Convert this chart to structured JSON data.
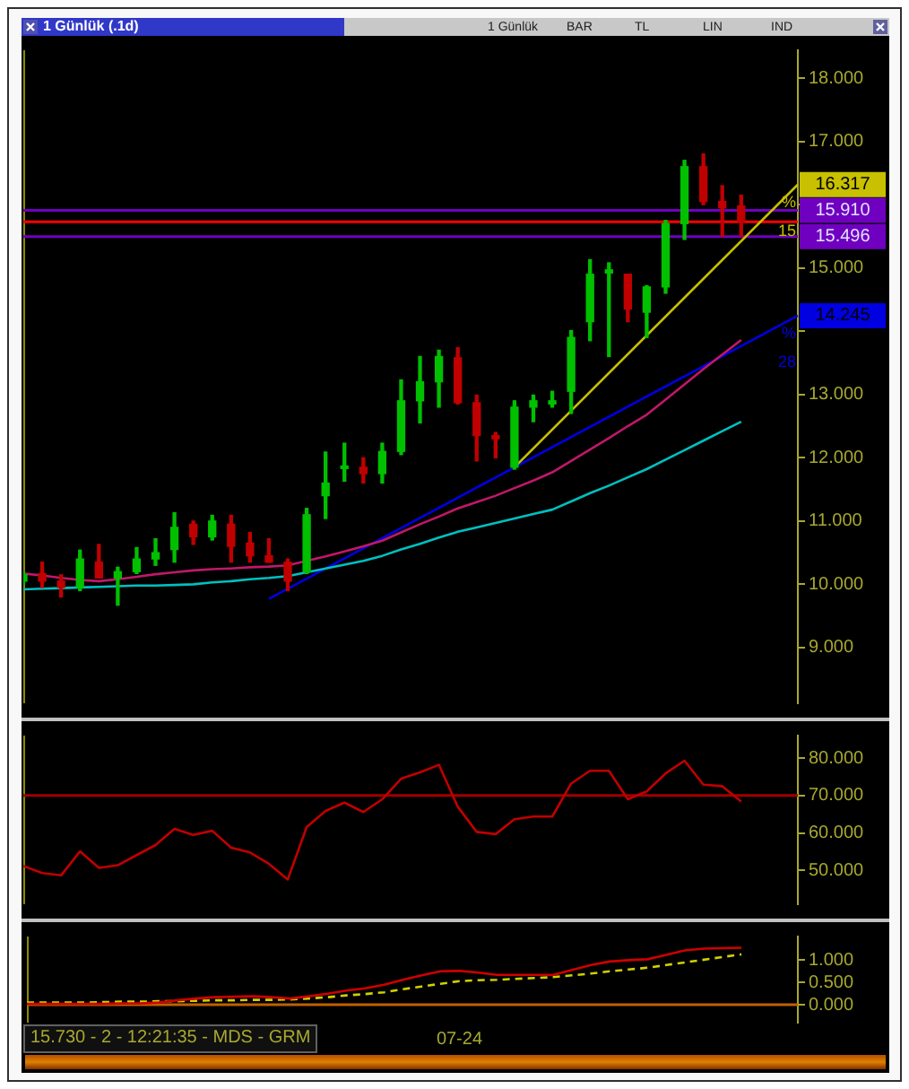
{
  "chart_data": [
    {
      "type": "candlestick",
      "title": "1 Günlük (.1d)",
      "annotations": [
        "1 Günlük",
        "BAR",
        "TL",
        "LIN",
        "IND",
        "%",
        "15",
        "%",
        "28"
      ],
      "categories": [
        null,
        null,
        null,
        null,
        null,
        null,
        null,
        null,
        null,
        null,
        null,
        null,
        null,
        null,
        null,
        null,
        null,
        null,
        null,
        null,
        null,
        null,
        null,
        null,
        null,
        null,
        null,
        null,
        null,
        null,
        null,
        null,
        null,
        null,
        null,
        null,
        null,
        null,
        null,
        null,
        null,
        null
      ],
      "ohlc": [
        [
          10.05,
          10.2,
          10.0,
          10.15
        ],
        [
          10.17,
          10.35,
          9.95,
          10.05
        ],
        [
          10.05,
          10.15,
          9.8,
          9.95
        ],
        [
          9.95,
          10.54,
          9.9,
          10.4
        ],
        [
          10.35,
          10.63,
          10.1,
          10.1
        ],
        [
          10.1,
          10.27,
          9.67,
          10.2
        ],
        [
          10.2,
          10.58,
          10.17,
          10.4
        ],
        [
          10.4,
          10.72,
          10.3,
          10.5
        ],
        [
          10.55,
          11.13,
          10.35,
          10.9
        ],
        [
          10.95,
          11.0,
          10.63,
          10.75
        ],
        [
          10.75,
          11.09,
          10.7,
          11.0
        ],
        [
          10.95,
          11.09,
          10.35,
          10.6
        ],
        [
          10.65,
          10.82,
          10.35,
          10.45
        ],
        [
          10.45,
          10.72,
          10.35,
          10.35
        ],
        [
          10.35,
          10.4,
          9.9,
          10.05
        ],
        [
          10.2,
          11.2,
          10.17,
          11.1
        ],
        [
          11.4,
          12.09,
          11.04,
          11.6
        ],
        [
          11.83,
          12.23,
          11.63,
          11.87
        ],
        [
          11.85,
          12.0,
          11.6,
          11.75
        ],
        [
          11.75,
          12.23,
          11.6,
          12.1
        ],
        [
          12.1,
          13.23,
          12.05,
          12.9
        ],
        [
          12.9,
          13.6,
          12.55,
          13.2
        ],
        [
          13.2,
          13.7,
          12.8,
          13.6
        ],
        [
          13.58,
          13.74,
          12.85,
          12.87
        ],
        [
          12.87,
          12.99,
          11.95,
          12.35
        ],
        [
          12.35,
          12.4,
          12.0,
          12.3
        ],
        [
          11.85,
          12.9,
          11.82,
          12.8
        ],
        [
          12.8,
          12.99,
          12.57,
          12.9
        ],
        [
          12.85,
          13.05,
          12.8,
          12.9
        ],
        [
          13.05,
          14.01,
          12.7,
          13.9
        ],
        [
          14.15,
          15.13,
          13.85,
          14.9
        ],
        [
          14.92,
          15.08,
          13.6,
          14.97
        ],
        [
          14.9,
          14.9,
          14.15,
          14.35
        ],
        [
          14.3,
          14.72,
          13.9,
          14.7
        ],
        [
          14.7,
          15.75,
          14.6,
          15.7
        ],
        [
          15.7,
          16.7,
          15.45,
          16.6
        ],
        [
          16.6,
          16.8,
          16.0,
          16.05
        ],
        [
          16.05,
          16.3,
          15.5,
          15.95
        ],
        [
          15.98,
          16.15,
          15.5,
          15.73
        ],
        null,
        null,
        null
      ],
      "colors": [
        "#00c000",
        "#c00000",
        "#c00000",
        "#00c000",
        "#c00000",
        "#00c000",
        "#00c000",
        "#00c000",
        "#00c000",
        "#c00000",
        "#00c000",
        "#c00000",
        "#c00000",
        "#c00000",
        "#c00000",
        "#00c000",
        "#00c000",
        "#00c000",
        "#c00000",
        "#00c000",
        "#00c000",
        "#00c000",
        "#00c000",
        "#c00000",
        "#c00000",
        "#c00000",
        "#00c000",
        "#00c000",
        "#00c000",
        "#00c000",
        "#00c000",
        "#00c000",
        "#c00000",
        "#00c000",
        "#00c000",
        "#00c000",
        "#c00000",
        "#c00000",
        "#c00000",
        null,
        null,
        null
      ],
      "series": [
        {
          "type": "line",
          "color": "#00c0c0",
          "values": [
            9.92,
            9.93,
            9.94,
            9.95,
            9.96,
            9.97,
            9.98,
            9.98,
            9.99,
            10.0,
            10.03,
            10.05,
            10.08,
            10.1,
            10.13,
            10.19,
            10.25,
            10.31,
            10.37,
            10.45,
            10.55,
            10.64,
            10.74,
            10.83,
            10.9,
            10.97,
            11.04,
            11.11,
            11.18,
            11.31,
            11.44,
            11.56,
            11.69,
            11.82,
            11.97,
            12.12,
            12.27,
            12.42,
            12.57,
            null,
            null,
            null
          ]
        },
        {
          "type": "line",
          "color": "#c0186a",
          "values": [
            10.17,
            10.14,
            10.1,
            10.07,
            10.05,
            10.08,
            10.12,
            10.16,
            10.19,
            10.22,
            10.24,
            10.25,
            10.27,
            10.28,
            10.3,
            10.37,
            10.44,
            10.52,
            10.6,
            10.69,
            10.82,
            10.95,
            11.07,
            11.2,
            11.3,
            11.4,
            11.52,
            11.64,
            11.77,
            11.95,
            12.13,
            12.31,
            12.5,
            12.68,
            12.92,
            13.16,
            13.4,
            13.63,
            13.86,
            null,
            null,
            null
          ]
        },
        {
          "type": "line",
          "color": "#c8c000",
          "values": [
            null,
            null,
            null,
            null,
            null,
            null,
            null,
            null,
            null,
            null,
            null,
            null,
            null,
            null,
            null,
            null,
            null,
            null,
            null,
            null,
            null,
            null,
            null,
            null,
            null,
            null,
            11.85,
            null,
            null,
            null,
            null,
            null,
            null,
            null,
            null,
            null,
            null,
            null,
            null,
            null,
            null,
            16.317
          ],
          "value_labels": [
            null,
            null,
            null,
            null,
            null,
            null,
            null,
            null,
            null,
            null,
            null,
            null,
            null,
            null,
            null,
            null,
            null,
            null,
            null,
            null,
            null,
            null,
            null,
            null,
            null,
            null,
            null,
            null,
            null,
            null,
            null,
            null,
            null,
            null,
            null,
            null,
            null,
            null,
            null,
            null,
            null,
            "16.317"
          ]
        },
        {
          "type": "line",
          "color": "#0000e0",
          "values": [
            null,
            null,
            null,
            null,
            null,
            null,
            null,
            null,
            null,
            null,
            null,
            null,
            null,
            9.77,
            null,
            null,
            null,
            null,
            null,
            null,
            null,
            null,
            null,
            null,
            null,
            null,
            null,
            null,
            null,
            null,
            null,
            null,
            null,
            null,
            null,
            null,
            null,
            null,
            null,
            null,
            null,
            14.245
          ],
          "value_labels": [
            null,
            null,
            null,
            null,
            null,
            null,
            null,
            null,
            null,
            null,
            null,
            null,
            null,
            null,
            null,
            null,
            null,
            null,
            null,
            null,
            null,
            null,
            null,
            null,
            null,
            null,
            null,
            null,
            null,
            null,
            null,
            null,
            null,
            null,
            null,
            null,
            null,
            null,
            null,
            null,
            null,
            "14.245"
          ]
        }
      ],
      "ref_lines": [
        {
          "axis": "y",
          "value": 15.91,
          "label": "15.910",
          "color": "#7000c0"
        },
        {
          "axis": "y",
          "value": 15.496,
          "label": "15.496",
          "color": "#7000c0"
        },
        {
          "axis": "y",
          "value": 15.73,
          "color": "#ff0000"
        }
      ],
      "ylim": [
        8.12,
        18.44
      ],
      "yticks": [
        {
          "value": 9,
          "label": "9.000"
        },
        {
          "value": 10,
          "label": "10.000"
        },
        {
          "value": 11,
          "label": "11.000"
        },
        {
          "value": 12,
          "label": "12.000"
        },
        {
          "value": 13,
          "label": "13.000"
        },
        {
          "value": 14,
          "label": null
        },
        {
          "value": 15,
          "label": "15.000"
        },
        {
          "value": 16,
          "label": null
        },
        {
          "value": 17,
          "label": "17.000"
        },
        {
          "value": 18,
          "label": "18.000"
        }
      ],
      "tick_labels": "y"
    },
    {
      "type": "line",
      "categories": [
        null,
        null,
        null,
        null,
        null,
        null,
        null,
        null,
        null,
        null,
        null,
        null,
        null,
        null,
        null,
        null,
        null,
        null,
        null,
        null,
        null,
        null,
        null,
        null,
        null,
        null,
        null,
        null,
        null,
        null,
        null,
        null,
        null,
        null,
        null,
        null,
        null,
        null,
        null,
        null,
        null,
        null
      ],
      "series": [
        {
          "color": "#c00000",
          "values": [
            51.2,
            49.3,
            48.7,
            55.1,
            50.7,
            51.4,
            54.1,
            56.8,
            61.1,
            59.5,
            60.6,
            56.1,
            54.8,
            51.8,
            47.6,
            61.6,
            65.9,
            68.1,
            65.6,
            69.0,
            74.5,
            76.2,
            78.2,
            67.0,
            60.3,
            59.7,
            63.7,
            64.4,
            64.4,
            73.2,
            76.6,
            76.6,
            69.0,
            71.1,
            75.9,
            79.3,
            72.9,
            72.5,
            68.4,
            null,
            null,
            null
          ]
        }
      ],
      "ref_lines": [
        {
          "axis": "y",
          "value": 70,
          "color": "#a00000"
        }
      ],
      "ylim": [
        41,
        86
      ],
      "yticks": [
        {
          "value": 50,
          "label": "50.000"
        },
        {
          "value": 60,
          "label": "60.000"
        },
        {
          "value": 70,
          "label": "70.000"
        },
        {
          "value": 80,
          "label": "80.000"
        }
      ],
      "tick_labels": "y"
    },
    {
      "type": "line",
      "annotations": [
        "15.730 - 2 - 12:21:35 - MDS - GRM"
      ],
      "categories": [
        null,
        null,
        null,
        null,
        null,
        null,
        null,
        null,
        null,
        null,
        null,
        null,
        null,
        null,
        null,
        null,
        null,
        null,
        null,
        null,
        null,
        null,
        null,
        "07-24",
        null,
        null,
        null,
        null,
        null,
        null,
        null,
        null,
        null,
        null,
        null,
        null,
        null,
        null,
        null,
        null,
        null,
        null
      ],
      "series": [
        {
          "color": "#d00000",
          "values": [
            0.02,
            0.02,
            0.02,
            0.02,
            0.02,
            0.03,
            0.03,
            0.05,
            0.1,
            0.14,
            0.17,
            0.18,
            0.19,
            0.17,
            0.14,
            0.19,
            0.25,
            0.32,
            0.37,
            0.45,
            0.56,
            0.66,
            0.75,
            0.76,
            0.72,
            0.67,
            0.67,
            0.67,
            0.67,
            0.78,
            0.89,
            0.97,
            1.0,
            1.02,
            1.12,
            1.22,
            1.26,
            1.27,
            1.28,
            null,
            null,
            null
          ]
        },
        {
          "color": "#d0d000",
          "line_style": "dashed",
          "values": [
            0.05,
            0.05,
            0.05,
            0.05,
            0.06,
            0.07,
            0.07,
            0.08,
            0.08,
            0.09,
            0.1,
            0.1,
            0.11,
            0.11,
            0.12,
            0.14,
            0.17,
            0.21,
            0.24,
            0.28,
            0.35,
            0.41,
            0.47,
            0.53,
            0.55,
            0.56,
            0.58,
            0.6,
            0.62,
            0.66,
            0.7,
            0.75,
            0.79,
            0.83,
            0.89,
            0.95,
            1.01,
            1.07,
            1.13,
            null,
            null,
            null
          ]
        }
      ],
      "ref_lines": [
        {
          "axis": "y",
          "value": 0,
          "color": "#c06000"
        }
      ],
      "ylim": [
        -0.4,
        1.53
      ],
      "yticks": [
        {
          "value": 0,
          "label": "0.000"
        },
        {
          "value": 0.5,
          "label": "0.500"
        },
        {
          "value": 1,
          "label": "1.000"
        }
      ]
    }
  ]
}
